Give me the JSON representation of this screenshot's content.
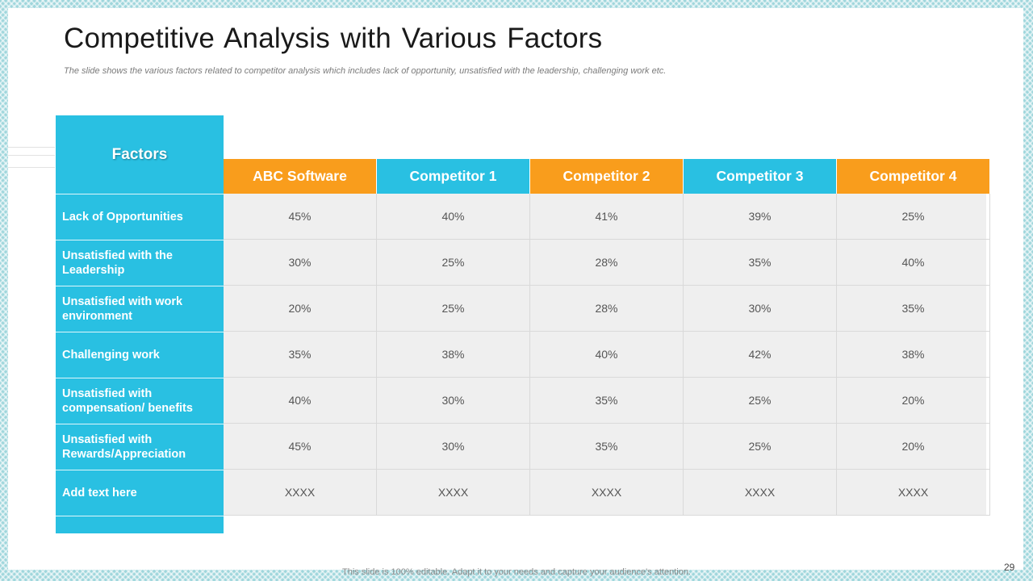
{
  "slide": {
    "title": "Competitive Analysis with Various Factors",
    "subtitle": "The slide shows the various factors related to competitor analysis which includes lack of opportunity, unsatisfied with the leadership, challenging work etc.",
    "footer": "This slide is 100% editable. Adapt it to your needs and capture your audience's attention.",
    "page_number": "29"
  },
  "colors": {
    "accent_blue": "#29c0e2",
    "accent_orange": "#f99d1c",
    "cell_background": "#efefef"
  },
  "table": {
    "factors_header": "Factors",
    "columns": [
      {
        "label": "ABC Software",
        "color": "orange"
      },
      {
        "label": "Competitor 1",
        "color": "blue"
      },
      {
        "label": "Competitor 2",
        "color": "orange"
      },
      {
        "label": "Competitor 3",
        "color": "blue"
      },
      {
        "label": "Competitor 4",
        "color": "orange"
      }
    ],
    "rows": [
      {
        "factor": "Lack of Opportunities",
        "values": [
          "45%",
          "40%",
          "41%",
          "39%",
          "25%"
        ]
      },
      {
        "factor": "Unsatisfied with the Leadership",
        "values": [
          "30%",
          "25%",
          "28%",
          "35%",
          "40%"
        ]
      },
      {
        "factor": "Unsatisfied with work environment",
        "values": [
          "20%",
          "25%",
          "28%",
          "30%",
          "35%"
        ]
      },
      {
        "factor": "Challenging work",
        "values": [
          "35%",
          "38%",
          "40%",
          "42%",
          "38%"
        ]
      },
      {
        "factor": "Unsatisfied with compensation/ benefits",
        "values": [
          "40%",
          "30%",
          "35%",
          "25%",
          "20%"
        ]
      },
      {
        "factor": "Unsatisfied with Rewards/Appreciation",
        "values": [
          "45%",
          "30%",
          "35%",
          "25%",
          "20%"
        ]
      },
      {
        "factor": "Add  text here",
        "values": [
          "XXXX",
          "XXXX",
          "XXXX",
          "XXXX",
          "XXXX"
        ]
      }
    ]
  }
}
